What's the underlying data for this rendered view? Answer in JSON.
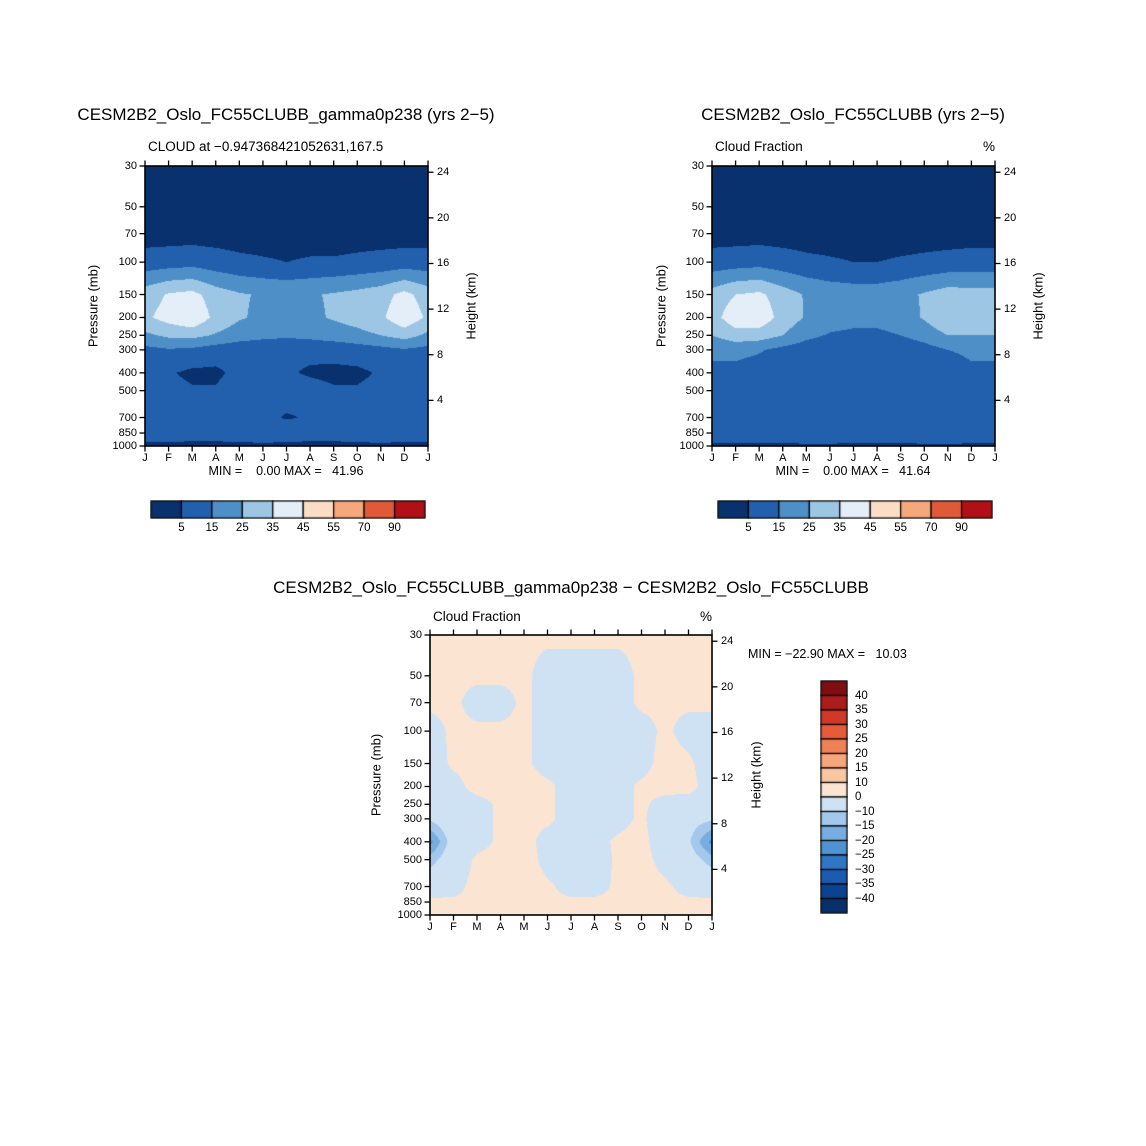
{
  "page": {
    "background": "#ffffff"
  },
  "chart_data": [
    {
      "type": "heatmap",
      "title": "CESM2B2_Oslo_FC55CLUBB_gamma0p238 (yrs 2−5)",
      "subtitle": "CLOUD at −0.947368421052631,167.5",
      "units": "",
      "ylabel_left": "Pressure (mb)",
      "ylabel_right": "Height (km)",
      "stats": "MIN =    0.00 MAX =   41.96",
      "min": 0.0,
      "max": 41.96,
      "x_tick_labels": [
        "J",
        "F",
        "M",
        "A",
        "M",
        "J",
        "J",
        "A",
        "S",
        "O",
        "N",
        "D",
        "J"
      ],
      "pressure_ticks": [
        30,
        50,
        70,
        100,
        150,
        200,
        250,
        300,
        400,
        500,
        700,
        850,
        1000
      ],
      "height_ticks": [
        24,
        20,
        16,
        12,
        8,
        4
      ],
      "levels": [
        5,
        15,
        25,
        35,
        45,
        55,
        70,
        90
      ],
      "colorbar_labels": [
        "5",
        "15",
        "25",
        "35",
        "45",
        "55",
        "70",
        "90"
      ],
      "colors": [
        "#08316d",
        "#2260ae",
        "#4f8fc8",
        "#9dc6e4",
        "#e3eef8",
        "#fbdcc4",
        "#f5a87c",
        "#e05a38",
        "#b01016"
      ],
      "values": [
        [
          0.5,
          0.5,
          0.5,
          0.5,
          0.5,
          0.5,
          0.5,
          0.5,
          0.5,
          0.5,
          0.5,
          0.5,
          0.5
        ],
        [
          0.5,
          0.5,
          0.5,
          0.5,
          0.5,
          0.5,
          0.5,
          0.5,
          0.5,
          0.5,
          0.5,
          0.5,
          0.5
        ],
        [
          1,
          1,
          1,
          1,
          1,
          1,
          1,
          1,
          1,
          1,
          1,
          1,
          1
        ],
        [
          9,
          10,
          11,
          9,
          7,
          6,
          5,
          6,
          6,
          7,
          8,
          9,
          9
        ],
        [
          30,
          36,
          38,
          30,
          26,
          24,
          23,
          24,
          26,
          28,
          31,
          38,
          30
        ],
        [
          33,
          39,
          44,
          32,
          26,
          23,
          21,
          23,
          26,
          29,
          33,
          43,
          33
        ],
        [
          23,
          27,
          28,
          24,
          20,
          18,
          17,
          18,
          20,
          22,
          25,
          29,
          23
        ],
        [
          12,
          14,
          13,
          10,
          8,
          7,
          6,
          7,
          8,
          10,
          12,
          14,
          12
        ],
        [
          8,
          6,
          3,
          3,
          8,
          10,
          6,
          4,
          3,
          3,
          6,
          8,
          8
        ],
        [
          10,
          8,
          6,
          6,
          10,
          12,
          10,
          8,
          6,
          6,
          8,
          10,
          10
        ],
        [
          8,
          6,
          6,
          8,
          10,
          8,
          4,
          6,
          8,
          10,
          8,
          6,
          8
        ],
        [
          12,
          12,
          10,
          10,
          12,
          14,
          12,
          10,
          10,
          12,
          14,
          12,
          12
        ],
        [
          2,
          2,
          2,
          2,
          2,
          2,
          2,
          2,
          2,
          2,
          2,
          2,
          2
        ]
      ]
    },
    {
      "type": "heatmap",
      "title": "CESM2B2_Oslo_FC55CLUBB (yrs 2−5)",
      "subtitle": "Cloud Fraction",
      "units": "%",
      "ylabel_left": "Pressure (mb)",
      "ylabel_right": "Height (km)",
      "stats": "MIN =    0.00 MAX =   41.64",
      "min": 0.0,
      "max": 41.64,
      "x_tick_labels": [
        "J",
        "F",
        "M",
        "A",
        "M",
        "J",
        "J",
        "A",
        "S",
        "O",
        "N",
        "D",
        "J"
      ],
      "pressure_ticks": [
        30,
        50,
        70,
        100,
        150,
        200,
        250,
        300,
        400,
        500,
        700,
        850,
        1000
      ],
      "height_ticks": [
        24,
        20,
        16,
        12,
        8,
        4
      ],
      "levels": [
        5,
        15,
        25,
        35,
        45,
        55,
        70,
        90
      ],
      "colorbar_labels": [
        "5",
        "15",
        "25",
        "35",
        "45",
        "55",
        "70",
        "90"
      ],
      "colors": [
        "#08316d",
        "#2260ae",
        "#4f8fc8",
        "#9dc6e4",
        "#e3eef8",
        "#fbdcc4",
        "#f5a87c",
        "#e05a38",
        "#b01016"
      ],
      "values": [
        [
          0.5,
          0.5,
          0.5,
          0.5,
          0.5,
          0.5,
          0.5,
          0.5,
          0.5,
          0.5,
          0.5,
          0.5,
          0.5
        ],
        [
          0.5,
          0.5,
          0.5,
          0.5,
          0.5,
          0.5,
          0.5,
          0.5,
          0.5,
          0.5,
          0.5,
          0.5,
          0.5
        ],
        [
          1,
          1,
          1,
          1,
          1,
          1,
          1,
          1,
          1,
          1,
          1,
          1,
          1
        ],
        [
          9,
          10,
          11,
          9,
          7,
          6,
          5,
          5,
          6,
          7,
          8,
          9,
          9
        ],
        [
          29,
          35,
          37,
          30,
          24,
          21,
          20,
          20,
          22,
          26,
          30,
          29,
          29
        ],
        [
          31,
          41,
          42,
          31,
          24,
          20,
          18,
          18,
          20,
          26,
          34,
          31,
          31
        ],
        [
          25,
          31,
          30,
          25,
          18,
          14,
          13,
          13,
          15,
          19,
          25,
          25,
          25
        ],
        [
          16,
          18,
          16,
          12,
          9,
          7,
          7,
          7,
          8,
          11,
          15,
          16,
          16
        ],
        [
          14,
          12,
          10,
          8,
          7,
          9,
          9,
          7,
          6,
          8,
          12,
          14,
          14
        ],
        [
          12,
          10,
          8,
          8,
          11,
          7,
          9,
          11,
          8,
          7,
          10,
          12,
          12
        ],
        [
          10,
          9,
          8,
          8,
          11,
          12,
          10,
          8,
          7,
          8,
          10,
          10,
          10
        ],
        [
          13,
          13,
          12,
          12,
          14,
          14,
          12,
          12,
          12,
          14,
          14,
          13,
          13
        ],
        [
          3,
          3,
          3,
          3,
          3,
          3,
          3,
          3,
          3,
          3,
          3,
          3,
          3
        ]
      ]
    },
    {
      "type": "heatmap",
      "title": "CESM2B2_Oslo_FC55CLUBB_gamma0p238 − CESM2B2_Oslo_FC55CLUBB",
      "subtitle": "Cloud Fraction",
      "units": "%",
      "ylabel_left": "Pressure (mb)",
      "ylabel_right": "Height (km)",
      "stats": "MIN = −22.90 MAX =   10.03",
      "min": -22.9,
      "max": 10.03,
      "x_tick_labels": [
        "J",
        "F",
        "M",
        "A",
        "M",
        "J",
        "J",
        "A",
        "S",
        "O",
        "N",
        "D",
        "J"
      ],
      "pressure_ticks": [
        30,
        50,
        70,
        100,
        150,
        200,
        250,
        300,
        400,
        500,
        700,
        850,
        1000
      ],
      "height_ticks": [
        24,
        20,
        16,
        12,
        8,
        4
      ],
      "levels": [
        -40,
        -35,
        -30,
        -25,
        -20,
        -15,
        -10,
        0,
        10,
        15,
        20,
        25,
        30,
        35,
        40
      ],
      "colorbar_labels": [
        "40",
        "35",
        "30",
        "25",
        "20",
        "15",
        "10",
        "0",
        "−10",
        "−15",
        "−20",
        "−25",
        "−30",
        "−35",
        "−40"
      ],
      "colors": [
        "#08306b",
        "#0d4290",
        "#1b5bb0",
        "#2f77c4",
        "#4f93d4",
        "#77ade0",
        "#a3c8ec",
        "#cfe2f4",
        "#fbe4d1",
        "#f9c6a2",
        "#f5a67b",
        "#ef8157",
        "#e65c3b",
        "#d03927",
        "#ab1c1c",
        "#7f0e12"
      ],
      "values": [
        [
          1,
          1,
          1,
          1,
          1,
          1,
          1,
          1,
          1,
          1,
          1,
          1,
          1
        ],
        [
          1,
          1,
          1,
          1,
          1,
          -2,
          -2,
          -2,
          -2,
          1,
          1,
          1,
          1
        ],
        [
          1,
          1,
          -2,
          -2,
          1,
          -2,
          -3,
          -2,
          -2,
          1,
          1,
          1,
          1
        ],
        [
          -2,
          1,
          1,
          1,
          1,
          -2,
          -3,
          -3,
          -2,
          -2,
          1,
          -2,
          -2
        ],
        [
          -3,
          1,
          2,
          1,
          1,
          -2,
          -3,
          -3,
          -2,
          -2,
          2,
          1,
          -3
        ],
        [
          -3,
          -2,
          2,
          2,
          2,
          1,
          -2,
          -3,
          -2,
          1,
          2,
          2,
          -3
        ],
        [
          -4,
          -3,
          -2,
          1,
          2,
          1,
          -2,
          -2,
          -2,
          1,
          -2,
          -3,
          -4
        ],
        [
          -9,
          -4,
          -2,
          1,
          1,
          1,
          -2,
          -2,
          -2,
          1,
          -4,
          -7,
          -9
        ],
        [
          -22,
          -6,
          -2,
          1,
          2,
          -2,
          -3,
          -2,
          1,
          2,
          -4,
          -9,
          -22
        ],
        [
          -13,
          -4,
          1,
          2,
          3,
          -2,
          -4,
          -3,
          1,
          2,
          -2,
          -6,
          -13
        ],
        [
          -3,
          -2,
          2,
          3,
          2,
          1,
          -2,
          -2,
          1,
          2,
          1,
          -2,
          -3
        ],
        [
          1,
          1,
          1,
          2,
          2,
          1,
          1,
          1,
          1,
          1,
          1,
          1,
          1
        ],
        [
          1,
          1,
          1,
          1,
          1,
          1,
          1,
          1,
          1,
          1,
          1,
          1,
          1
        ]
      ]
    }
  ]
}
